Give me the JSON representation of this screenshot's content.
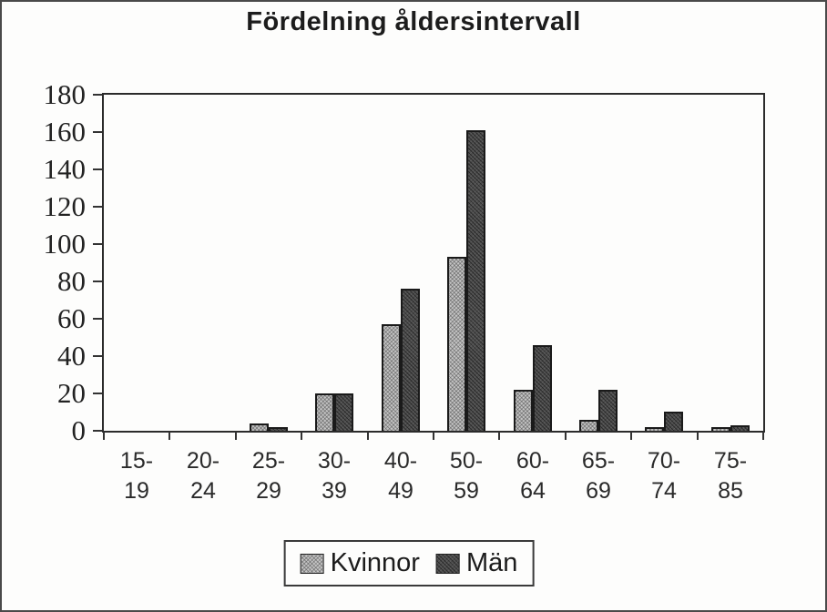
{
  "chart_data": {
    "type": "bar",
    "title": "Fördelning åldersintervall",
    "categories": [
      "15-19",
      "20-24",
      "25-29",
      "30-39",
      "40-49",
      "50-59",
      "60-64",
      "65-69",
      "70-74",
      "75-85"
    ],
    "category_labels": [
      [
        "15-",
        "19"
      ],
      [
        "20-",
        "24"
      ],
      [
        "25-",
        "29"
      ],
      [
        "30-",
        "39"
      ],
      [
        "40-",
        "49"
      ],
      [
        "50-",
        "59"
      ],
      [
        "60-",
        "64"
      ],
      [
        "65-",
        "69"
      ],
      [
        "70-",
        "74"
      ],
      [
        "75-",
        "85"
      ]
    ],
    "series": [
      {
        "name": "Kvinnor",
        "values": [
          0,
          0,
          4,
          20,
          57,
          93,
          22,
          6,
          2,
          2
        ],
        "color": "#c4c4c4",
        "pattern": "light-hatch"
      },
      {
        "name": "Män",
        "values": [
          0,
          0,
          2,
          20,
          76,
          161,
          46,
          22,
          10,
          3
        ],
        "color": "#4c4c4c",
        "pattern": "dark-hatch"
      }
    ],
    "xlabel": "",
    "ylabel": "",
    "ylim": [
      0,
      180
    ],
    "ytick_step": 20,
    "ytick_labels": [
      "0",
      "20",
      "40",
      "60",
      "80",
      "100",
      "120",
      "140",
      "160",
      "180"
    ],
    "grid": false,
    "legend_position": "bottom-center"
  }
}
